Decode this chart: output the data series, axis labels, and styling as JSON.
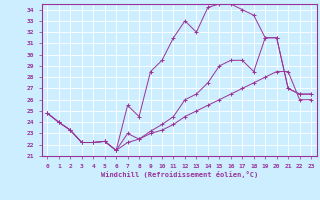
{
  "xlabel": "Windchill (Refroidissement éolien,°C)",
  "bg_color": "#cceeff",
  "line_color": "#993399",
  "grid_color": "#aaddee",
  "xlim": [
    -0.5,
    23.5
  ],
  "ylim": [
    21,
    34.5
  ],
  "xticks": [
    0,
    1,
    2,
    3,
    4,
    5,
    6,
    7,
    8,
    9,
    10,
    11,
    12,
    13,
    14,
    15,
    16,
    17,
    18,
    19,
    20,
    21,
    22,
    23
  ],
  "yticks": [
    21,
    22,
    23,
    24,
    25,
    26,
    27,
    28,
    29,
    30,
    31,
    32,
    33,
    34
  ],
  "line1_x": [
    0,
    1,
    2,
    3,
    4,
    5,
    6,
    7,
    8,
    9,
    10,
    11,
    12,
    13,
    14,
    15,
    16,
    17,
    18,
    19,
    20,
    21,
    22,
    23
  ],
  "line1_y": [
    24.8,
    24.0,
    23.3,
    22.2,
    22.2,
    22.3,
    21.5,
    25.5,
    24.5,
    28.5,
    29.5,
    31.5,
    33.0,
    32.0,
    34.2,
    34.5,
    34.5,
    34.0,
    33.5,
    31.5,
    31.5,
    27.0,
    26.5,
    26.5
  ],
  "line2_x": [
    0,
    1,
    2,
    3,
    4,
    5,
    6,
    7,
    8,
    9,
    10,
    11,
    12,
    13,
    14,
    15,
    16,
    17,
    18,
    19,
    20,
    21,
    22,
    23
  ],
  "line2_y": [
    24.8,
    24.0,
    23.3,
    22.2,
    22.2,
    22.3,
    21.5,
    23.0,
    22.5,
    23.2,
    23.8,
    24.5,
    26.0,
    26.5,
    27.5,
    29.0,
    29.5,
    29.5,
    28.5,
    31.5,
    31.5,
    27.0,
    26.5,
    26.5
  ],
  "line3_x": [
    0,
    1,
    2,
    3,
    4,
    5,
    6,
    7,
    8,
    9,
    10,
    11,
    12,
    13,
    14,
    15,
    16,
    17,
    18,
    19,
    20,
    21,
    22,
    23
  ],
  "line3_y": [
    24.8,
    24.0,
    23.3,
    22.2,
    22.2,
    22.3,
    21.5,
    22.2,
    22.5,
    23.0,
    23.3,
    23.8,
    24.5,
    25.0,
    25.5,
    26.0,
    26.5,
    27.0,
    27.5,
    28.0,
    28.5,
    28.5,
    26.0,
    26.0
  ]
}
